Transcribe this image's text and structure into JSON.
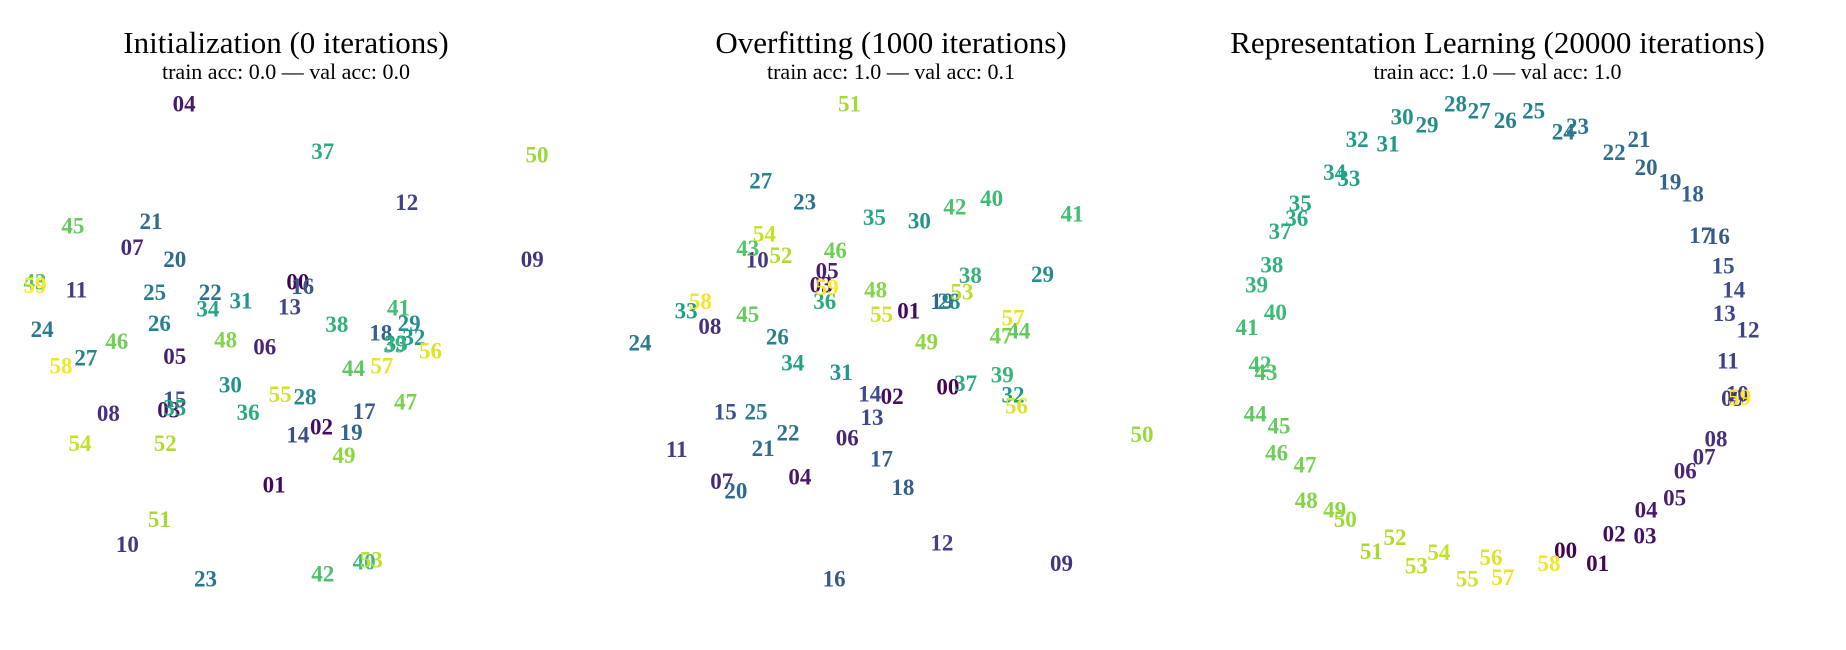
{
  "chart_data": [
    {
      "type": "scatter",
      "title": "Initialization (0 iterations)",
      "subtitle": "train acc: 0.0 — val acc: 0.0",
      "colormap": "viridis",
      "labels": [
        "00",
        "01",
        "02",
        "03",
        "04",
        "05",
        "06",
        "07",
        "08",
        "09",
        "10",
        "11",
        "12",
        "13",
        "14",
        "15",
        "16",
        "17",
        "18",
        "19",
        "20",
        "21",
        "22",
        "23",
        "24",
        "25",
        "26",
        "27",
        "28",
        "29",
        "30",
        "31",
        "32",
        "33",
        "34",
        "35",
        "36",
        "37",
        "38",
        "39",
        "40",
        "41",
        "42",
        "43",
        "44",
        "45",
        "46",
        "47",
        "48",
        "49",
        "50",
        "51",
        "52",
        "53",
        "54",
        "55",
        "56",
        "57",
        "58",
        "59"
      ],
      "x": [
        252,
        232,
        272,
        143,
        156,
        148,
        224,
        112,
        92,
        450,
        108,
        65,
        344,
        245,
        252,
        148,
        256,
        308,
        322,
        297,
        148,
        128,
        178,
        174,
        36,
        131,
        135,
        73,
        258,
        346,
        195,
        204,
        350,
        335,
        176,
        148,
        210,
        273,
        285,
        334,
        308,
        337,
        273,
        30,
        299,
        62,
        99,
        343,
        191,
        291,
        454,
        135,
        140,
        314,
        68,
        237,
        364,
        323,
        52,
        30
      ],
      "y": [
        240,
        411,
        362,
        348,
        90,
        303,
        295,
        211,
        351,
        221,
        461,
        247,
        173,
        261,
        369,
        339,
        244,
        349,
        283,
        367,
        221,
        189,
        249,
        490,
        280,
        249,
        275,
        304,
        337,
        275,
        327,
        256,
        287,
        292,
        263,
        346,
        350,
        130,
        276,
        293,
        476,
        262,
        486,
        240,
        313,
        193,
        290,
        341,
        289,
        386,
        133,
        440,
        376,
        474,
        376,
        335,
        298,
        311,
        311,
        243
      ]
    },
    {
      "type": "scatter",
      "title": "Overfitting (1000 iterations)",
      "subtitle": "train acc: 1.0 — val acc: 0.1",
      "colormap": "viridis",
      "labels": [
        "00",
        "01",
        "02",
        "03",
        "04",
        "05",
        "06",
        "07",
        "08",
        "09",
        "10",
        "11",
        "12",
        "13",
        "14",
        "15",
        "16",
        "17",
        "18",
        "19",
        "20",
        "21",
        "22",
        "23",
        "24",
        "25",
        "26",
        "27",
        "28",
        "29",
        "30",
        "31",
        "32",
        "33",
        "34",
        "35",
        "36",
        "37",
        "38",
        "39",
        "40",
        "41",
        "42",
        "43",
        "44",
        "45",
        "46",
        "47",
        "48",
        "49",
        "50",
        "51",
        "52",
        "53",
        "54",
        "55",
        "56",
        "57",
        "58",
        "59"
      ],
      "x": [
        801,
        768,
        754,
        694,
        676,
        699,
        716,
        610,
        600,
        897,
        640,
        572,
        796,
        737,
        735,
        613,
        705,
        745,
        763,
        796,
        622,
        645,
        666,
        680,
        541,
        639,
        657,
        643,
        802,
        881,
        777,
        711,
        856,
        580,
        670,
        739,
        697,
        816,
        820,
        847,
        838,
        906,
        807,
        632,
        861,
        632,
        706,
        846,
        740,
        783,
        965,
        718,
        660,
        813,
        646,
        745,
        859,
        856,
        592,
        699
      ],
      "y": [
        329,
        265,
        337,
        243,
        405,
        231,
        372,
        409,
        278,
        478,
        222,
        382,
        461,
        355,
        335,
        350,
        491,
        390,
        414,
        257,
        417,
        381,
        368,
        173,
        292,
        350,
        287,
        155,
        257,
        234,
        189,
        317,
        336,
        265,
        309,
        186,
        257,
        326,
        235,
        319,
        170,
        183,
        177,
        212,
        282,
        268,
        214,
        286,
        247,
        291,
        369,
        90,
        218,
        249,
        200,
        268,
        345,
        271,
        257,
        245
      ]
    },
    {
      "type": "scatter",
      "title": "Representation Learning (20000 iterations)",
      "subtitle": "train acc: 1.0 — val acc: 1.0",
      "colormap": "viridis",
      "labels": [
        "00",
        "01",
        "02",
        "03",
        "04",
        "05",
        "06",
        "07",
        "08",
        "09",
        "10",
        "11",
        "12",
        "13",
        "14",
        "15",
        "16",
        "17",
        "18",
        "19",
        "20",
        "21",
        "22",
        "23",
        "24",
        "25",
        "26",
        "27",
        "28",
        "29",
        "30",
        "31",
        "32",
        "33",
        "34",
        "35",
        "36",
        "37",
        "38",
        "39",
        "40",
        "41",
        "42",
        "43",
        "44",
        "45",
        "46",
        "47",
        "48",
        "49",
        "50",
        "51",
        "52",
        "53",
        "54",
        "55",
        "56",
        "57",
        "58",
        "59"
      ],
      "x": [
        1323,
        1350,
        1364,
        1390,
        1391,
        1415,
        1424,
        1440,
        1450,
        1464,
        1468,
        1460,
        1477,
        1457,
        1465,
        1456,
        1452,
        1437,
        1430,
        1411,
        1391,
        1385,
        1364,
        1333,
        1321,
        1296,
        1272,
        1250,
        1230,
        1206,
        1185,
        1173,
        1147,
        1140,
        1128,
        1099,
        1096,
        1082,
        1075,
        1062,
        1078,
        1054,
        1065,
        1070,
        1061,
        1081,
        1079,
        1103,
        1104,
        1128,
        1137,
        1159,
        1179,
        1197,
        1216,
        1240,
        1260,
        1270,
        1309,
        1470
      ],
      "y": [
        467,
        478,
        453,
        455,
        433,
        423,
        400,
        388,
        373,
        339,
        335,
        307,
        281,
        267,
        247,
        227,
        202,
        201,
        166,
        156,
        144,
        120,
        131,
        109,
        114,
        96,
        104,
        96,
        90,
        108,
        101,
        124,
        120,
        153,
        148,
        174,
        187,
        198,
        226,
        243,
        266,
        279,
        310,
        317,
        352,
        362,
        385,
        395,
        425,
        433,
        441,
        468,
        456,
        480,
        469,
        491,
        473,
        490,
        478,
        338
      ]
    }
  ]
}
